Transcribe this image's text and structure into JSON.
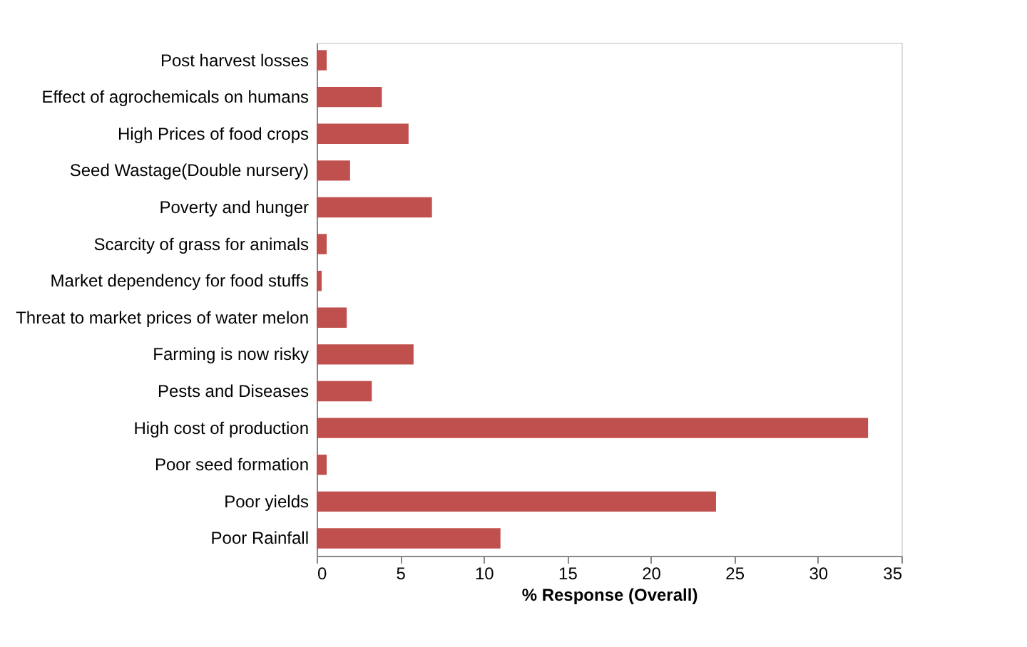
{
  "chart_data": {
    "type": "bar",
    "orientation": "horizontal",
    "xlabel": "% Response (Overall)",
    "categories": [
      "Post harvest losses",
      "Effect of agrochemicals on humans",
      "High Prices of food crops",
      "Seed Wastage(Double nursery)",
      "Poverty and hunger",
      "Scarcity of  grass for animals",
      "Market dependency for food stuffs",
      "Threat to market prices of water melon",
      "Farming is now  risky",
      "Pests and Diseases",
      "High cost of production",
      "Poor seed formation",
      "Poor yields",
      "Poor Rainfall"
    ],
    "values": [
      0.6,
      3.9,
      5.5,
      2.0,
      6.9,
      0.6,
      0.3,
      1.8,
      5.8,
      3.3,
      33.0,
      0.6,
      23.9,
      11.0
    ],
    "color": "#c0504d",
    "xlim": [
      0,
      35
    ],
    "xticks": [
      0,
      5,
      10,
      15,
      20,
      25,
      30,
      35
    ],
    "grid": false
  }
}
